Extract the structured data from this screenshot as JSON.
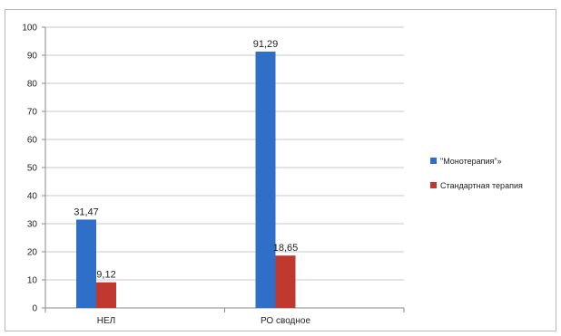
{
  "chart_data": {
    "type": "bar",
    "categories": [
      "НЕЛ",
      "РО сводное"
    ],
    "series": [
      {
        "name": "\"Монотерапия\"»",
        "color": "#2f6fc7",
        "values": [
          31.47,
          91.29
        ],
        "labels": [
          "31,47",
          "91,29"
        ]
      },
      {
        "name": "Стандартная терапия",
        "color": "#c0392f",
        "values": [
          9.12,
          18.65
        ],
        "labels": [
          "9,12",
          "18,65"
        ]
      }
    ],
    "title": "",
    "xlabel": "",
    "ylabel": "",
    "ylim": [
      0,
      100
    ],
    "yticks": [
      0,
      10,
      20,
      30,
      40,
      50,
      60,
      70,
      80,
      90,
      100
    ],
    "grid": true,
    "legend_position": "right"
  }
}
